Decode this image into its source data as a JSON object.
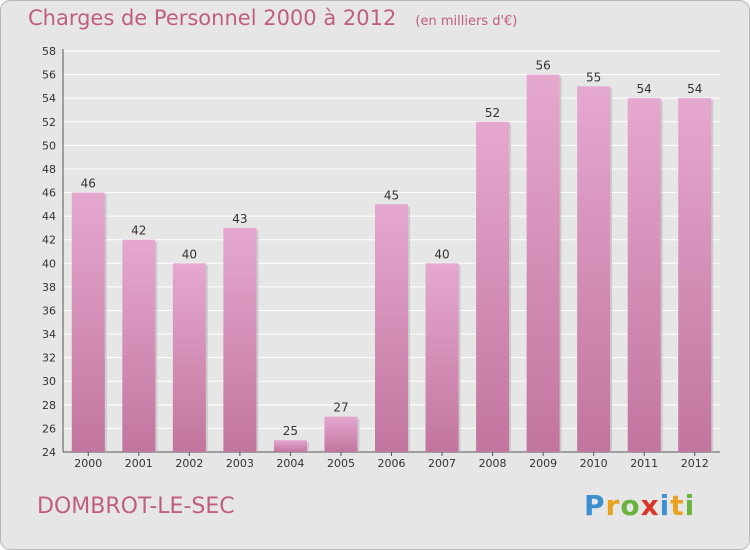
{
  "header": {
    "title": "Charges de Personnel 2000 à 2012",
    "subtitle": "(en milliers d'€)"
  },
  "footer": {
    "place": "DOMBROT-LE-SEC",
    "brand": {
      "letters": [
        "P",
        "r",
        "o",
        "x",
        "i",
        "t",
        "i"
      ],
      "colors": [
        "#3d8fd0",
        "#e8a21f",
        "#68b33c",
        "#d9372b",
        "#3d8fd0",
        "#e8a21f",
        "#68b33c"
      ]
    }
  },
  "chart_data": {
    "type": "bar",
    "categories": [
      "2000",
      "2001",
      "2002",
      "2003",
      "2004",
      "2005",
      "2006",
      "2007",
      "2008",
      "2009",
      "2010",
      "2011",
      "2012"
    ],
    "values": [
      46,
      42,
      40,
      43,
      25,
      27,
      45,
      40,
      52,
      56,
      55,
      54,
      54
    ],
    "ylim": [
      24,
      58
    ],
    "yticks": [
      24,
      26,
      28,
      30,
      32,
      34,
      36,
      38,
      40,
      42,
      44,
      46,
      48,
      50,
      52,
      54,
      56,
      58
    ],
    "grid": true,
    "bar_color": "#c2759e",
    "bar_color_light": "#e5a8cf",
    "value_labels": true
  }
}
